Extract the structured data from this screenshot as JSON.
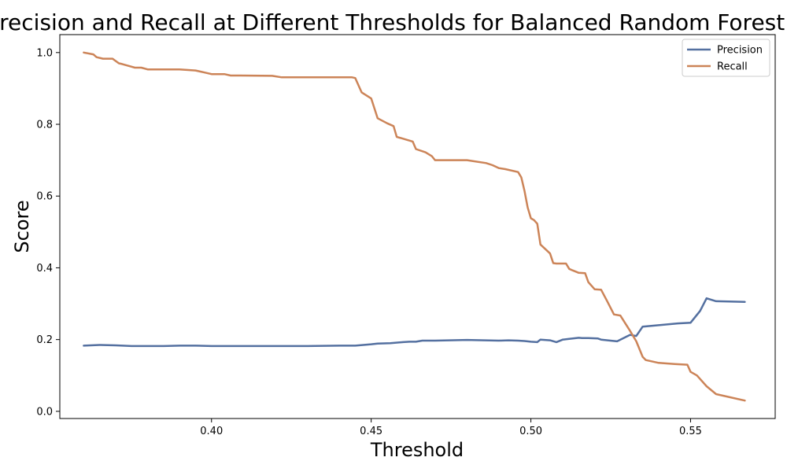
{
  "chart_data": {
    "type": "line",
    "title": "Precision and Recall at Different Thresholds for Balanced Random Forest",
    "xlabel": "Threshold",
    "ylabel": "Score",
    "xlim": [
      0.3525,
      0.5765
    ],
    "ylim": [
      -0.02,
      1.05
    ],
    "xticks": [
      0.4,
      0.45,
      0.5,
      0.55
    ],
    "xtick_labels": [
      "0.40",
      "0.45",
      "0.50",
      "0.55"
    ],
    "yticks": [
      0.0,
      0.2,
      0.4,
      0.6,
      0.8,
      1.0
    ],
    "ytick_labels": [
      "0.0",
      "0.2",
      "0.4",
      "0.6",
      "0.8",
      "1.0"
    ],
    "grid": false,
    "legend_position": "top-right",
    "series": [
      {
        "name": "Precision",
        "color": "#5470a0",
        "x": [
          0.36,
          0.365,
          0.37,
          0.375,
          0.38,
          0.385,
          0.39,
          0.395,
          0.4,
          0.41,
          0.42,
          0.43,
          0.44,
          0.445,
          0.45,
          0.452,
          0.456,
          0.46,
          0.462,
          0.464,
          0.466,
          0.47,
          0.48,
          0.49,
          0.493,
          0.496,
          0.498,
          0.5,
          0.502,
          0.503,
          0.506,
          0.508,
          0.51,
          0.512,
          0.515,
          0.516,
          0.518,
          0.521,
          0.522,
          0.527,
          0.531,
          0.533,
          0.535,
          0.54,
          0.546,
          0.55,
          0.553,
          0.555,
          0.558,
          0.567
        ],
        "y": [
          0.183,
          0.185,
          0.184,
          0.182,
          0.182,
          0.182,
          0.183,
          0.183,
          0.182,
          0.182,
          0.182,
          0.182,
          0.183,
          0.183,
          0.187,
          0.189,
          0.19,
          0.193,
          0.194,
          0.194,
          0.197,
          0.197,
          0.199,
          0.197,
          0.198,
          0.197,
          0.196,
          0.194,
          0.193,
          0.2,
          0.198,
          0.193,
          0.2,
          0.202,
          0.205,
          0.204,
          0.204,
          0.203,
          0.2,
          0.195,
          0.213,
          0.21,
          0.236,
          0.24,
          0.245,
          0.247,
          0.28,
          0.315,
          0.307,
          0.305
        ]
      },
      {
        "name": "Recall",
        "color": "#cc8458",
        "x": [
          0.36,
          0.363,
          0.364,
          0.366,
          0.369,
          0.371,
          0.372,
          0.374,
          0.376,
          0.378,
          0.38,
          0.385,
          0.39,
          0.395,
          0.398,
          0.4,
          0.404,
          0.406,
          0.409,
          0.419,
          0.422,
          0.444,
          0.445,
          0.447,
          0.45,
          0.452,
          0.455,
          0.457,
          0.458,
          0.46,
          0.463,
          0.464,
          0.467,
          0.469,
          0.47,
          0.473,
          0.478,
          0.48,
          0.486,
          0.488,
          0.49,
          0.492,
          0.496,
          0.497,
          0.498,
          0.499,
          0.5,
          0.501,
          0.502,
          0.503,
          0.506,
          0.507,
          0.508,
          0.51,
          0.511,
          0.512,
          0.513,
          0.515,
          0.517,
          0.518,
          0.52,
          0.522,
          0.524,
          0.526,
          0.528,
          0.531,
          0.533,
          0.535,
          0.536,
          0.54,
          0.545,
          0.549,
          0.55,
          0.552,
          0.555,
          0.558,
          0.567
        ],
        "y": [
          1.0,
          0.995,
          0.987,
          0.983,
          0.983,
          0.97,
          0.968,
          0.963,
          0.958,
          0.958,
          0.953,
          0.953,
          0.953,
          0.95,
          0.944,
          0.94,
          0.94,
          0.936,
          0.936,
          0.935,
          0.931,
          0.931,
          0.929,
          0.889,
          0.872,
          0.817,
          0.803,
          0.795,
          0.765,
          0.76,
          0.752,
          0.731,
          0.722,
          0.711,
          0.7,
          0.7,
          0.7,
          0.7,
          0.692,
          0.686,
          0.678,
          0.675,
          0.667,
          0.652,
          0.615,
          0.568,
          0.538,
          0.533,
          0.523,
          0.465,
          0.44,
          0.413,
          0.412,
          0.412,
          0.412,
          0.397,
          0.393,
          0.386,
          0.385,
          0.36,
          0.34,
          0.339,
          0.305,
          0.27,
          0.267,
          0.225,
          0.195,
          0.152,
          0.143,
          0.135,
          0.132,
          0.13,
          0.11,
          0.1,
          0.07,
          0.048,
          0.03
        ]
      }
    ]
  }
}
